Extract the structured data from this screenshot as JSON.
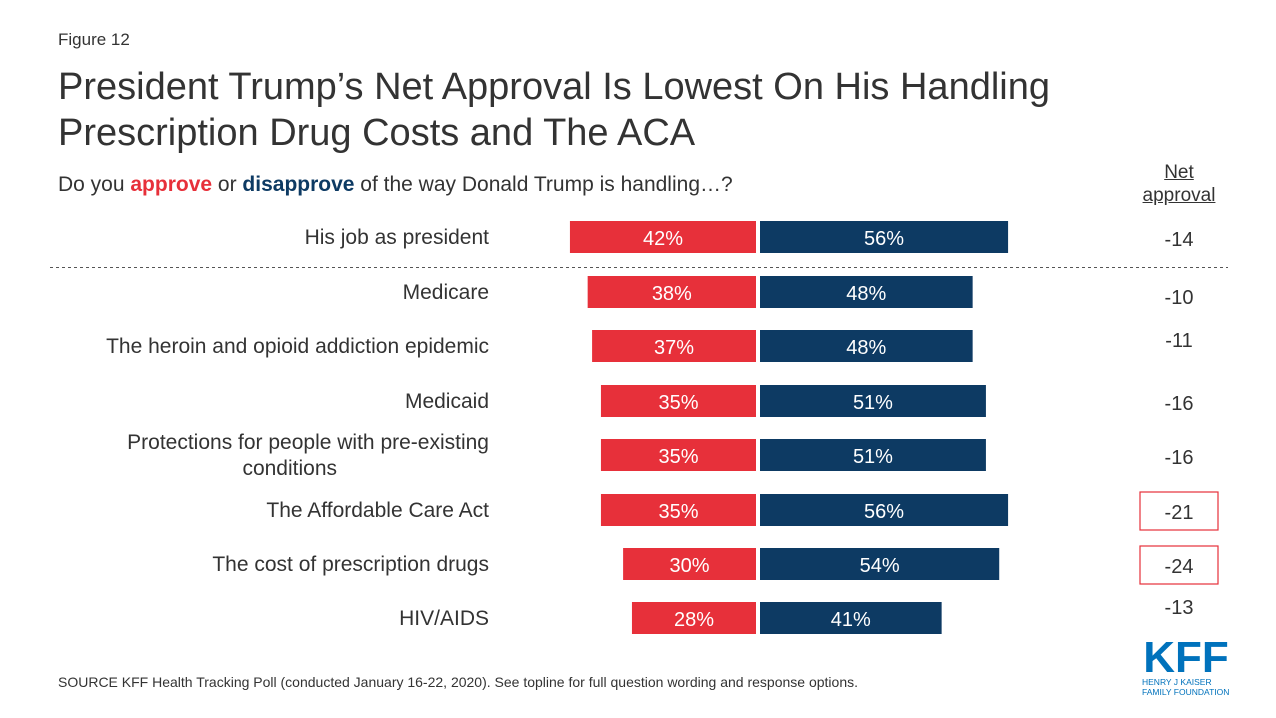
{
  "figure_label": "Figure 12",
  "title": "President Trump’s Net Approval Is Lowest On His Handling Prescription Drug Costs and The ACA",
  "subtitle": {
    "prefix": "Do you ",
    "approve": "approve",
    "middle": " or ",
    "disapprove": "disapprove",
    "suffix": " of the way Donald Trump is handling…?"
  },
  "net_header": "Net approval",
  "source": "SOURCE KFF Health Tracking Poll (conducted January 16-22, 2020). See topline for full question wording and response options.",
  "logo": {
    "mark": "KFF",
    "line1": "HENRY J KAISER",
    "line2": "FAMILY FOUNDATION"
  },
  "colors": {
    "approve": "#e7303a",
    "disapprove": "#0d3a63",
    "highlight_border": "#e7303a",
    "logo": "#0072bc"
  },
  "chart_data": {
    "type": "bar",
    "orientation": "horizontal-diverging",
    "categories": [
      "His job as president",
      "Medicare",
      "The heroin and opioid addiction epidemic",
      "Medicaid",
      "Protections for people with pre-existing conditions",
      "The Affordable Care Act",
      "The cost of prescription drugs",
      "HIV/AIDS"
    ],
    "series": [
      {
        "name": "approve",
        "values": [
          42,
          38,
          37,
          35,
          35,
          35,
          30,
          28
        ]
      },
      {
        "name": "disapprove",
        "values": [
          56,
          48,
          48,
          51,
          51,
          56,
          54,
          41
        ]
      }
    ],
    "data_labels": {
      "approve": [
        "42%",
        "38%",
        "37%",
        "35%",
        "35%",
        "35%",
        "30%",
        "28%"
      ],
      "disapprove": [
        "56%",
        "48%",
        "48%",
        "51%",
        "51%",
        "56%",
        "54%",
        "41%"
      ]
    },
    "net_approval": [
      "-14",
      "-10",
      "-11",
      "-16",
      "-16",
      "-21",
      "-24",
      "-13"
    ],
    "highlighted_net": [
      false,
      false,
      false,
      false,
      false,
      true,
      true,
      false
    ],
    "separator_after_index": 0,
    "unit": "%"
  }
}
